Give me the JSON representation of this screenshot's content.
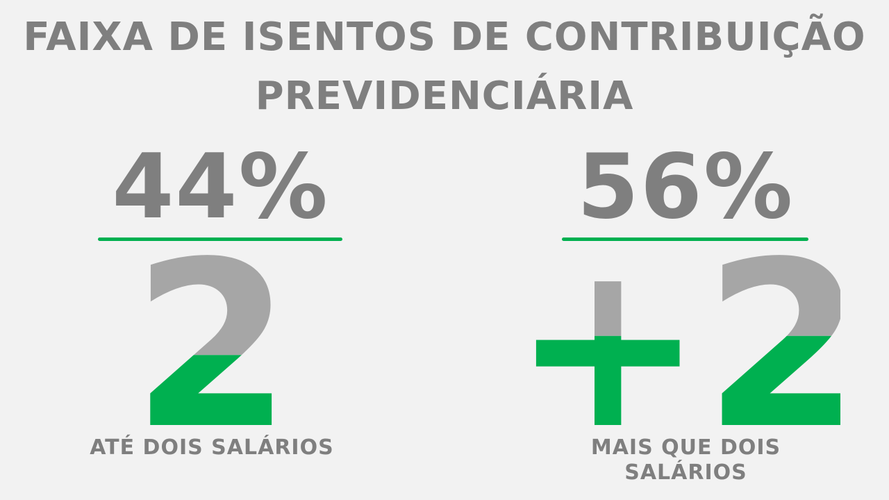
{
  "title": {
    "line1": "FAIXA DE ISENTOS DE CONTRIBUIÇÃO",
    "line2": "PREVIDENCIÁRIA"
  },
  "left": {
    "percent_text": "44%",
    "percent_value": 44,
    "glyph_text": "2",
    "caption": "ATÉ DOIS SALÁRIOS"
  },
  "right": {
    "percent_text": "56%",
    "percent_value": 56,
    "glyph_text": "+2",
    "caption": "MAIS QUE DOIS SALÁRIOS"
  },
  "colors": {
    "background": "#f2f2f2",
    "text_gray": "#7f7f7f",
    "glyph_gray": "#a6a6a6",
    "accent_green": "#00b050"
  }
}
